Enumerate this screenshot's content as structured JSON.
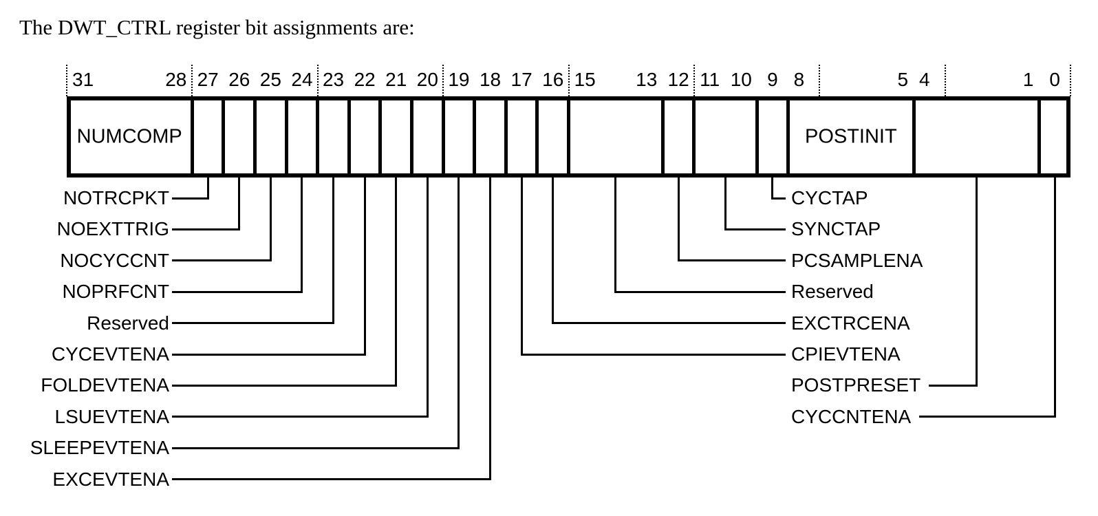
{
  "title": "The DWT_CTRL register bit assignments are:",
  "colors": {
    "ink": "#000000",
    "background": "#ffffff"
  },
  "register": {
    "name": "DWT_CTRL",
    "cells": [
      {
        "hi": 31,
        "lo": 28,
        "label": "NUMCOMP"
      },
      {
        "hi": 27,
        "lo": 27,
        "label": ""
      },
      {
        "hi": 26,
        "lo": 26,
        "label": ""
      },
      {
        "hi": 25,
        "lo": 25,
        "label": ""
      },
      {
        "hi": 24,
        "lo": 24,
        "label": ""
      },
      {
        "hi": 23,
        "lo": 23,
        "label": ""
      },
      {
        "hi": 22,
        "lo": 22,
        "label": ""
      },
      {
        "hi": 21,
        "lo": 21,
        "label": ""
      },
      {
        "hi": 20,
        "lo": 20,
        "label": ""
      },
      {
        "hi": 19,
        "lo": 19,
        "label": ""
      },
      {
        "hi": 18,
        "lo": 18,
        "label": ""
      },
      {
        "hi": 17,
        "lo": 17,
        "label": ""
      },
      {
        "hi": 16,
        "lo": 16,
        "label": ""
      },
      {
        "hi": 15,
        "lo": 13,
        "label": ""
      },
      {
        "hi": 12,
        "lo": 12,
        "label": ""
      },
      {
        "hi": 11,
        "lo": 10,
        "label": ""
      },
      {
        "hi": 9,
        "lo": 9,
        "label": ""
      },
      {
        "hi": 8,
        "lo": 5,
        "label": "POSTINIT"
      },
      {
        "hi": 4,
        "lo": 1,
        "label": ""
      },
      {
        "hi": 0,
        "lo": 0,
        "label": ""
      }
    ],
    "bit_numbers": [
      {
        "text": "31",
        "hi": 31,
        "lo": 28,
        "align": "left"
      },
      {
        "text": "28",
        "hi": 31,
        "lo": 28,
        "align": "right"
      },
      {
        "text": "27",
        "hi": 27,
        "lo": 27,
        "align": "center"
      },
      {
        "text": "26",
        "hi": 26,
        "lo": 26,
        "align": "center"
      },
      {
        "text": "25",
        "hi": 25,
        "lo": 25,
        "align": "center"
      },
      {
        "text": "24",
        "hi": 24,
        "lo": 24,
        "align": "center"
      },
      {
        "text": "23",
        "hi": 23,
        "lo": 23,
        "align": "center"
      },
      {
        "text": "22",
        "hi": 22,
        "lo": 22,
        "align": "center"
      },
      {
        "text": "21",
        "hi": 21,
        "lo": 21,
        "align": "center"
      },
      {
        "text": "20",
        "hi": 20,
        "lo": 20,
        "align": "center"
      },
      {
        "text": "19",
        "hi": 19,
        "lo": 19,
        "align": "center"
      },
      {
        "text": "18",
        "hi": 18,
        "lo": 18,
        "align": "center"
      },
      {
        "text": "17",
        "hi": 17,
        "lo": 17,
        "align": "center"
      },
      {
        "text": "16",
        "hi": 16,
        "lo": 16,
        "align": "center"
      },
      {
        "text": "15",
        "hi": 15,
        "lo": 13,
        "align": "left"
      },
      {
        "text": "13",
        "hi": 15,
        "lo": 13,
        "align": "right"
      },
      {
        "text": "12",
        "hi": 12,
        "lo": 12,
        "align": "center"
      },
      {
        "text": "11",
        "hi": 11,
        "lo": 11,
        "align": "center"
      },
      {
        "text": "10",
        "hi": 10,
        "lo": 10,
        "align": "center"
      },
      {
        "text": "9",
        "hi": 9,
        "lo": 9,
        "align": "center"
      },
      {
        "text": "8",
        "hi": 8,
        "lo": 5,
        "align": "left"
      },
      {
        "text": "5",
        "hi": 8,
        "lo": 5,
        "align": "right"
      },
      {
        "text": "4",
        "hi": 4,
        "lo": 1,
        "align": "left"
      },
      {
        "text": "1",
        "hi": 4,
        "lo": 1,
        "align": "right"
      },
      {
        "text": "0",
        "hi": 0,
        "lo": 0,
        "align": "center"
      }
    ],
    "tick_boundaries": [
      32,
      28,
      24,
      20,
      16,
      12,
      8,
      4,
      0
    ],
    "callouts_left": [
      {
        "bit": 27,
        "label": "NOTRCPKT"
      },
      {
        "bit": 26,
        "label": "NOEXTTRIG"
      },
      {
        "bit": 25,
        "label": "NOCYCCNT"
      },
      {
        "bit": 24,
        "label": "NOPRFCNT"
      },
      {
        "bit": 23,
        "label": "Reserved"
      },
      {
        "bit": 22,
        "label": "CYCEVTENA"
      },
      {
        "bit": 21,
        "label": "FOLDEVTENA"
      },
      {
        "bit": 20,
        "label": "LSUEVTENA"
      },
      {
        "bit": 19,
        "label": "SLEEPEVTENA"
      },
      {
        "bit": 18,
        "label": "EXCEVTENA"
      }
    ],
    "callouts_right": [
      {
        "hi": 9,
        "lo": 9,
        "label": "CYCTAP",
        "reverse": false
      },
      {
        "hi": 11,
        "lo": 10,
        "label": "SYNCTAP",
        "reverse": false
      },
      {
        "hi": 12,
        "lo": 12,
        "label": "PCSAMPLENA",
        "reverse": false
      },
      {
        "hi": 15,
        "lo": 13,
        "label": "Reserved",
        "reverse": false
      },
      {
        "hi": 16,
        "lo": 16,
        "label": "EXCTRCENA",
        "reverse": false
      },
      {
        "hi": 17,
        "lo": 17,
        "label": "CPIEVTENA",
        "reverse": false
      },
      {
        "hi": 4,
        "lo": 1,
        "label": "POSTPRESET",
        "reverse": true
      },
      {
        "hi": 0,
        "lo": 0,
        "label": "CYCCNTENA",
        "reverse": true
      }
    ]
  }
}
